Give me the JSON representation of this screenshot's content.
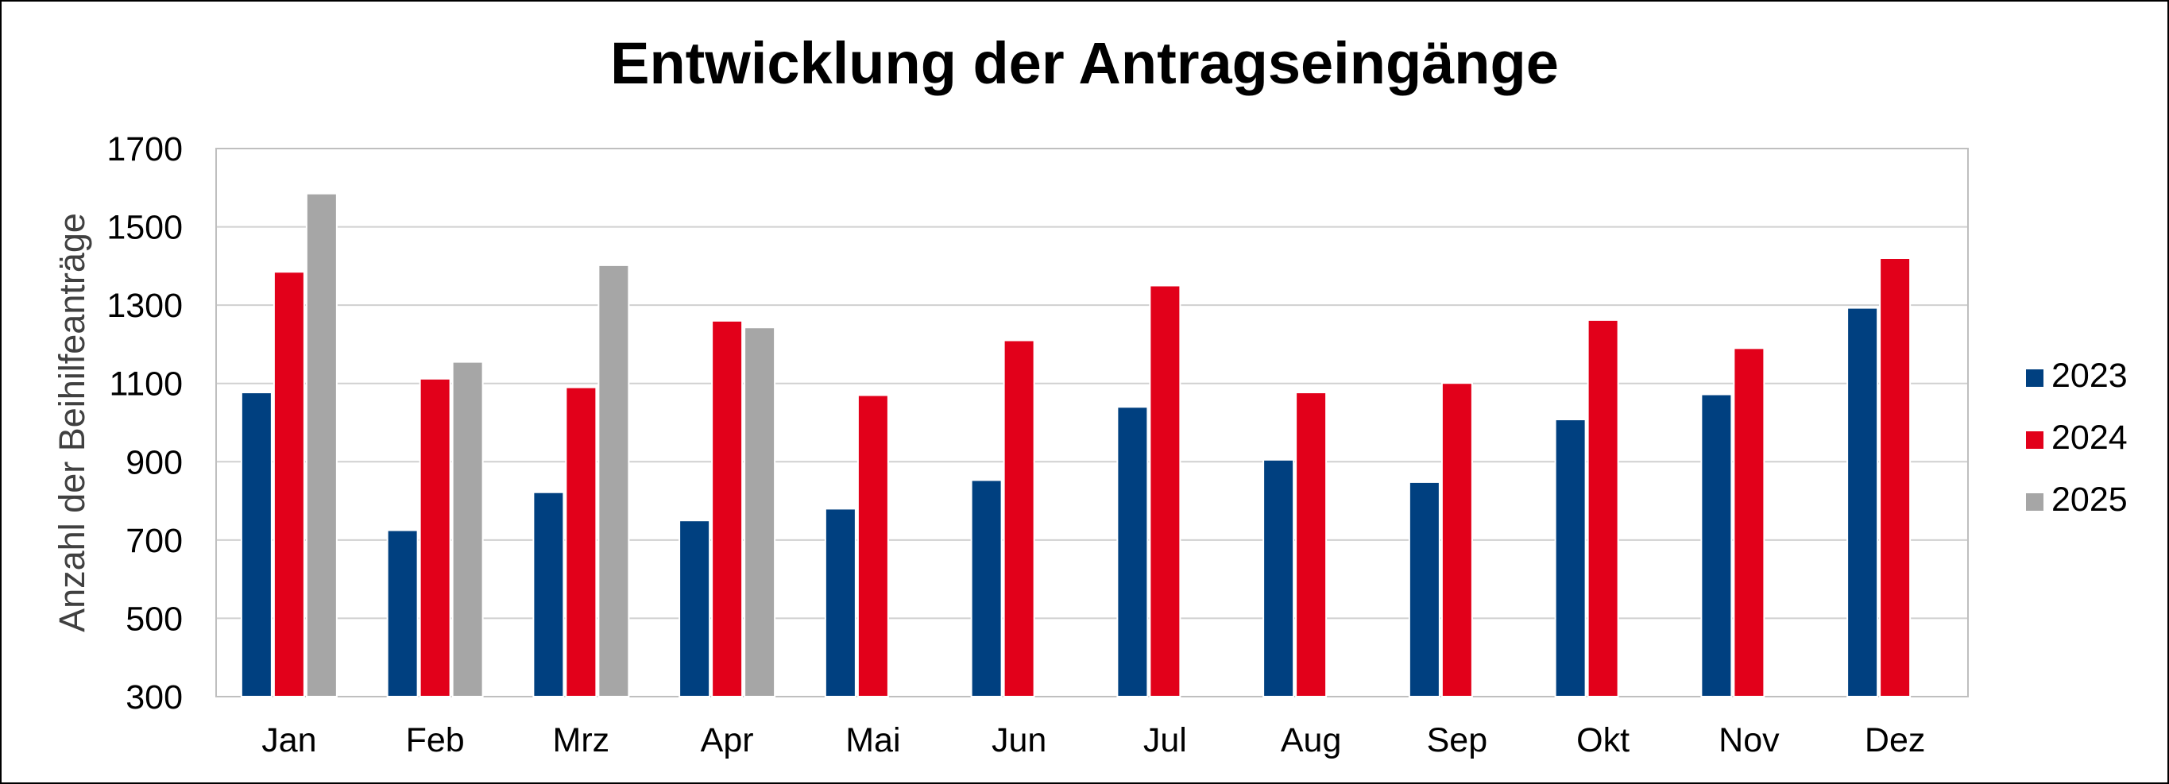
{
  "chart_data": {
    "type": "bar",
    "title": "Entwicklung der Antragseingänge",
    "xlabel": "",
    "ylabel": "Anzahl der Beihilfeanträge",
    "ylim": [
      300,
      1700
    ],
    "yticks": [
      300,
      500,
      700,
      900,
      1100,
      1300,
      1500,
      1700
    ],
    "grid": true,
    "legend_position": "right",
    "categories": [
      "Jan",
      "Feb",
      "Mrz",
      "Apr",
      "Mai",
      "Jun",
      "Jul",
      "Aug",
      "Sep",
      "Okt",
      "Nov",
      "Dez"
    ],
    "series": [
      {
        "name": "2023",
        "color": "#004080",
        "values": [
          1077,
          725,
          822,
          750,
          780,
          853,
          1040,
          905,
          848,
          1008,
          1072,
          1293
        ]
      },
      {
        "name": "2024",
        "color": "#e2001a",
        "values": [
          1385,
          1112,
          1090,
          1260,
          1070,
          1210,
          1350,
          1077,
          1101,
          1262,
          1190,
          1420
        ]
      },
      {
        "name": "2025",
        "color": "#a6a6a6",
        "values": [
          1585,
          1155,
          1402,
          1243,
          null,
          null,
          null,
          null,
          null,
          null,
          null,
          null
        ]
      }
    ]
  }
}
